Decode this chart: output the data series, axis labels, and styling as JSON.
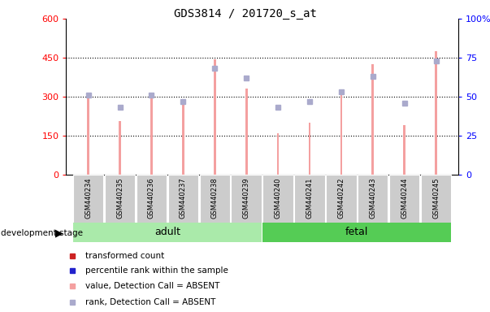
{
  "title": "GDS3814 / 201720_s_at",
  "samples": [
    "GSM440234",
    "GSM440235",
    "GSM440236",
    "GSM440237",
    "GSM440238",
    "GSM440239",
    "GSM440240",
    "GSM440241",
    "GSM440242",
    "GSM440243",
    "GSM440244",
    "GSM440245"
  ],
  "transformed_count": [
    310,
    205,
    310,
    283,
    445,
    330,
    158,
    200,
    315,
    425,
    190,
    475
  ],
  "percentile_rank": [
    51,
    43,
    51,
    47,
    68,
    62,
    43,
    47,
    53,
    63,
    46,
    73
  ],
  "detection_absent": [
    true,
    true,
    true,
    true,
    true,
    true,
    true,
    true,
    true,
    true,
    true,
    true
  ],
  "left_ylim": [
    0,
    600
  ],
  "right_ylim": [
    0,
    100
  ],
  "left_yticks": [
    0,
    150,
    300,
    450,
    600
  ],
  "right_yticks": [
    0,
    25,
    50,
    75,
    100
  ],
  "bar_color_absent": "#f4a0a0",
  "marker_color_absent": "#aaaacc",
  "adult_bg": "#aaeaaa",
  "fetal_bg": "#55cc55",
  "sample_bg": "#cccccc",
  "bar_width": 0.07
}
